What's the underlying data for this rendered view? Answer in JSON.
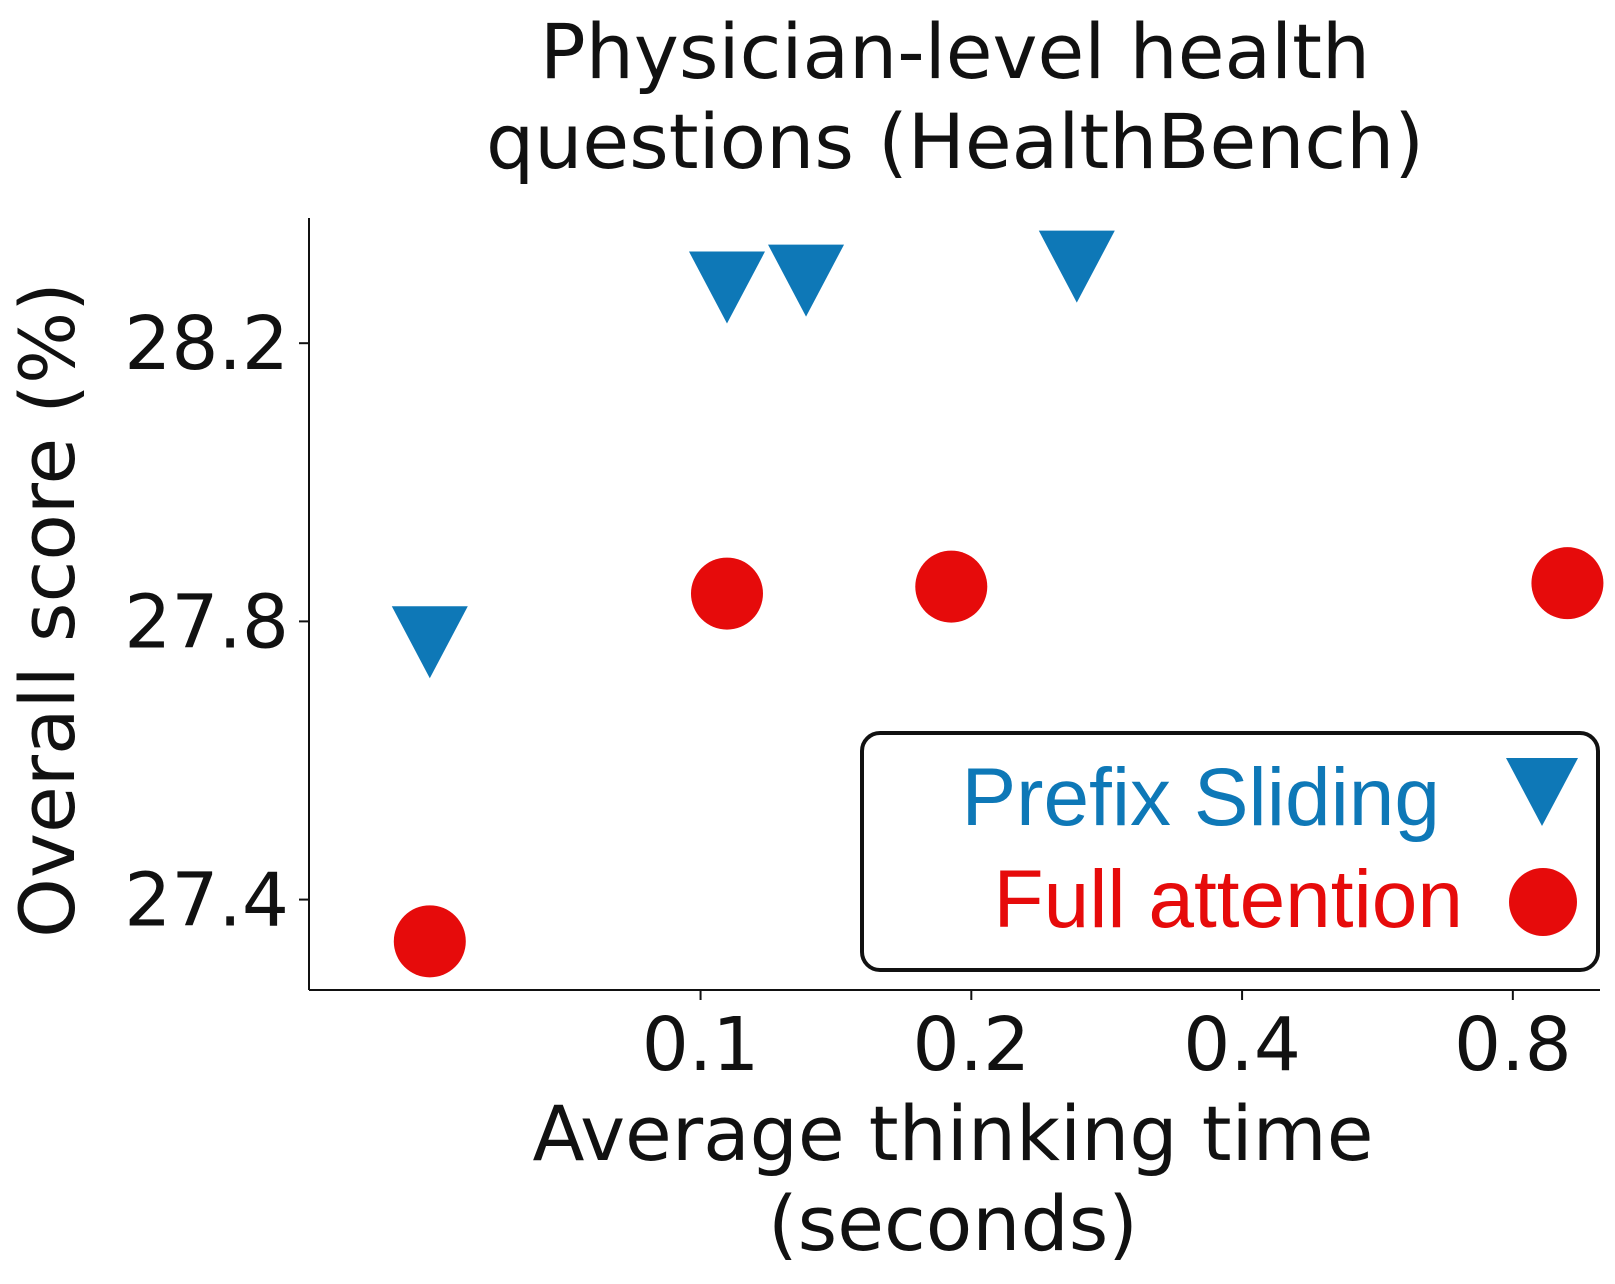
{
  "chart_data": {
    "type": "scatter",
    "title": [
      "Physician-level health",
      "questions (HealthBench)"
    ],
    "xlabel": [
      "Average thinking time",
      "(seconds)"
    ],
    "ylabel": "Overall score (%)",
    "x_scale": "log2",
    "xlim": [
      0.0367,
      1.0
    ],
    "ylim": [
      27.27,
      28.38
    ],
    "x_ticks": [
      0.1,
      0.2,
      0.4,
      0.8
    ],
    "x_tick_labels": [
      "0.1",
      "0.2",
      "0.4",
      "0.8"
    ],
    "y_ticks": [
      27.4,
      27.8,
      28.2
    ],
    "y_tick_labels": [
      "27.4",
      "27.8",
      "28.2"
    ],
    "grid": false,
    "legend_position": "bottom-right",
    "series": [
      {
        "name": "Prefix Sliding",
        "marker": "triangle-down",
        "color": "#0e78b7",
        "x": [
          0.05,
          0.107,
          0.131,
          0.262
        ],
        "y": [
          27.77,
          28.28,
          28.29,
          28.31
        ]
      },
      {
        "name": "Full attention",
        "marker": "circle",
        "color": "#e60b0b",
        "x": [
          0.05,
          0.107,
          0.19,
          0.92
        ],
        "y": [
          27.34,
          27.84,
          27.85,
          27.855
        ]
      }
    ]
  }
}
